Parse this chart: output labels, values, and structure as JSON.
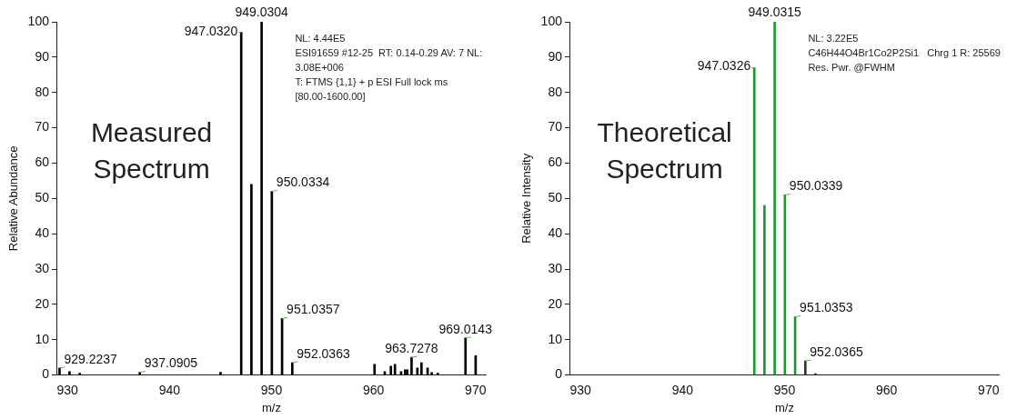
{
  "chart_data": [
    {
      "type": "bar",
      "xlabel": "m/z",
      "ylabel": "Relative Abundance",
      "xlim": [
        929,
        971
      ],
      "xticks": [
        930,
        940,
        950,
        960,
        970
      ],
      "ylim": [
        0,
        100
      ],
      "yticks": [
        0,
        10,
        20,
        30,
        40,
        50,
        60,
        70,
        80,
        90,
        100
      ],
      "grid": false,
      "x": [
        929.2237,
        930.2,
        931.2,
        937.0905,
        945.0,
        947.032,
        948.03,
        949.0304,
        950.0334,
        951.0357,
        952.0363,
        960.1,
        961.1,
        961.7,
        962.1,
        962.7,
        963.1,
        963.3,
        963.7278,
        964.3,
        964.7,
        965.3,
        965.7,
        966.3,
        969.0143,
        970.01
      ],
      "values": [
        2,
        1,
        0.5,
        0.8,
        0.8,
        97,
        54,
        100,
        52,
        16,
        3.5,
        3,
        1,
        2.5,
        3,
        1,
        1.5,
        1.5,
        5,
        2,
        3.5,
        2,
        0.7,
        0.5,
        10.5,
        5.5
      ],
      "color": "#000000",
      "annotations": [
        "Measured Spectrum",
        "NL: 4.44E5",
        "ESI91659 #12-25  RT: 0.14-0.29 AV: 7 NL:",
        "3.08E+006",
        "T: FTMS {1,1} + p ESI Full lock ms",
        "[80.00-1600.00]",
        {
          "text": "929.2237",
          "x": 929.2237,
          "y": 2
        },
        {
          "text": "937.0905",
          "x": 937.0905,
          "y": 0.8
        },
        {
          "text": "947.0320",
          "x": 947.032,
          "y": 97
        },
        {
          "text": "949.0304",
          "x": 949.0304,
          "y": 100
        },
        {
          "text": "950.0334",
          "x": 950.0334,
          "y": 52
        },
        {
          "text": "951.0357",
          "x": 951.0357,
          "y": 16
        },
        {
          "text": "952.0363",
          "x": 952.0363,
          "y": 3.5
        },
        {
          "text": "963.7278",
          "x": 963.7278,
          "y": 5
        },
        {
          "text": "969.0143",
          "x": 969.0143,
          "y": 10.5
        }
      ]
    },
    {
      "type": "bar",
      "xlabel": "m/z",
      "ylabel": "Relative Intensity",
      "xlim": [
        929,
        971
      ],
      "xticks": [
        930,
        940,
        950,
        960,
        970
      ],
      "ylim": [
        0,
        100
      ],
      "yticks": [
        0,
        10,
        20,
        30,
        40,
        50,
        60,
        70,
        80,
        90,
        100
      ],
      "grid": false,
      "x": [
        947.0326,
        948.03,
        949.0315,
        950.0339,
        951.0353,
        952.0365,
        953.04
      ],
      "values": [
        87,
        48,
        100,
        51,
        16.5,
        4,
        0.4
      ],
      "colors": [
        "#1a9a2e",
        "#1a9a2e",
        "#1a9a2e",
        "#1a9a2e",
        "#1a9a2e",
        "#333333",
        "#333333"
      ],
      "annotations": [
        "Theoretical Spectrum",
        "NL: 3.22E5",
        "C46H44O4Br1Co2P2Si1   Chrg 1 R: 25569",
        "Res. Pwr. @FWHM",
        {
          "text": "947.0326",
          "x": 947.0326,
          "y": 87
        },
        {
          "text": "949.0315",
          "x": 949.0315,
          "y": 100
        },
        {
          "text": "950.0339",
          "x": 950.0339,
          "y": 51
        },
        {
          "text": "951.0353",
          "x": 951.0353,
          "y": 16.5
        },
        {
          "text": "952.0365",
          "x": 952.0365,
          "y": 4
        }
      ]
    }
  ]
}
